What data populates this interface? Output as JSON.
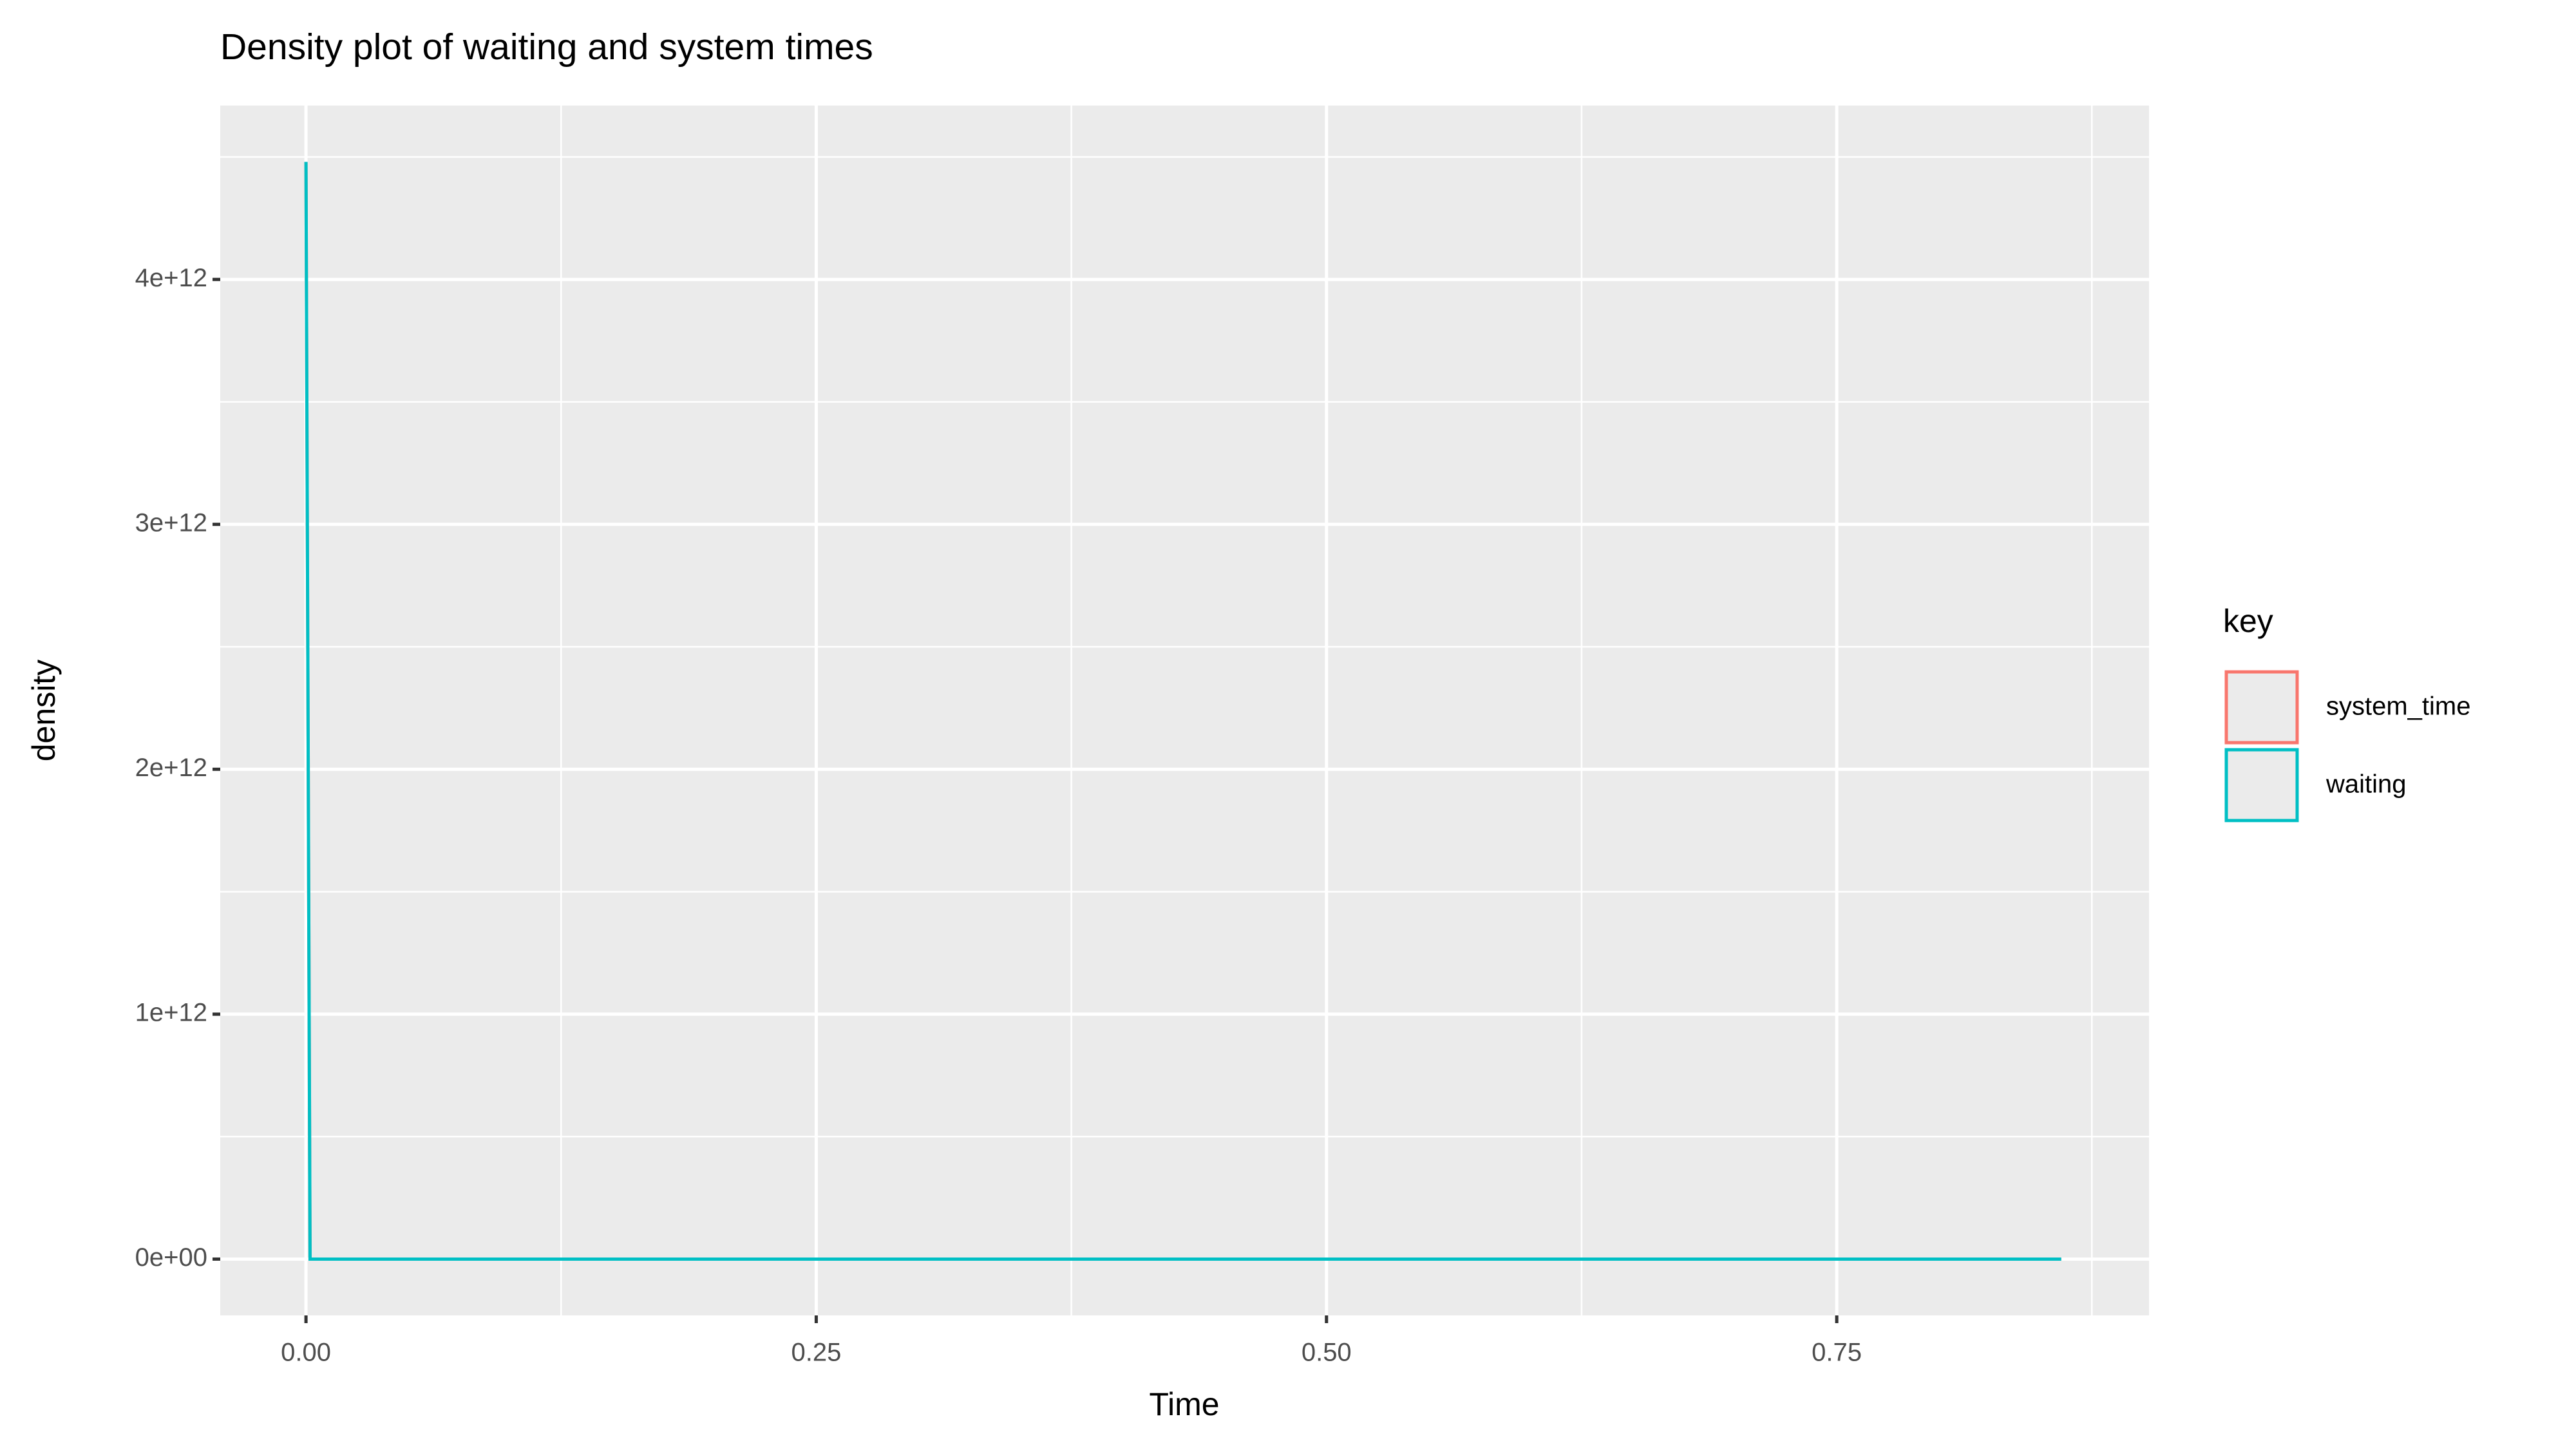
{
  "chart_data": {
    "type": "line",
    "title": "Density plot of waiting and system times",
    "x_label": "Time",
    "y_label": "density",
    "legend_title": "key",
    "legend": "right",
    "grid": true,
    "series": [
      {
        "name": "system_time",
        "color": "#F8766D",
        "x": [
          0,
          0.002,
          0.86
        ],
        "values": [
          4480000000000,
          0,
          0
        ]
      },
      {
        "name": "waiting",
        "color": "#00BFC4",
        "x": [
          0,
          0.002,
          0.86
        ],
        "values": [
          4480000000000,
          0,
          0
        ]
      }
    ],
    "xlim": [
      -0.042,
      0.903
    ],
    "xticks": [
      {
        "value": 0,
        "label": "0.00"
      },
      0.25,
      {
        "value": 0.5,
        "label": "0.50"
      },
      0.75
    ],
    "ylim": [
      -230000000000,
      4710000000000
    ],
    "yticks": [
      {
        "value": 0,
        "label": "0e+00"
      },
      {
        "value": 1000000000000,
        "label": "1e+12"
      },
      {
        "value": 2000000000000,
        "label": "2e+12"
      },
      {
        "value": 3000000000000,
        "label": "3e+12"
      },
      {
        "value": 4000000000000,
        "label": "4e+12"
      }
    ]
  }
}
